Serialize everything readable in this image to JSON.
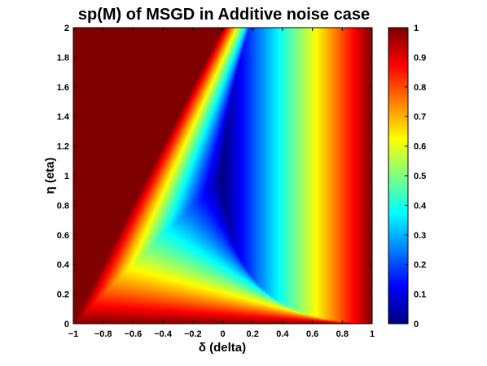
{
  "chart_data": {
    "type": "heatmap",
    "title": "sp(M) of MSGD in Additive noise case",
    "xlabel": "δ (delta)",
    "ylabel": "η (eta)",
    "xlim": [
      -1,
      1
    ],
    "ylim": [
      0,
      2
    ],
    "x_ticks": [
      "-1",
      "-0.8",
      "-0.6",
      "-0.4",
      "-0.2",
      "0",
      "0.2",
      "0.4",
      "0.6",
      "0.8",
      "1"
    ],
    "y_ticks": [
      "0",
      "0.2",
      "0.4",
      "0.6",
      "0.8",
      "1",
      "1.2",
      "1.4",
      "1.6",
      "1.8",
      "2"
    ],
    "colorbar": {
      "colormap": "jet",
      "range": [
        0,
        1
      ],
      "ticks": [
        "0",
        "0.1",
        "0.2",
        "0.3",
        "0.4",
        "0.5",
        "0.6",
        "0.7",
        "0.8",
        "0.9",
        "1"
      ]
    },
    "grid": false
  }
}
